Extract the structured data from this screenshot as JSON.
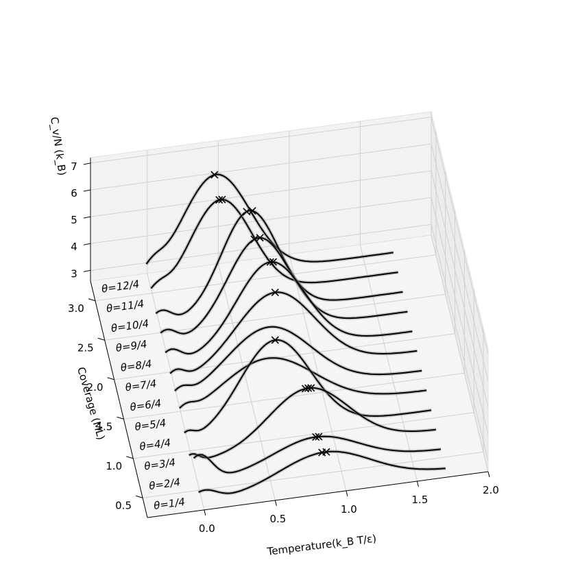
{
  "chart_data": {
    "type": "line",
    "projection": "3d",
    "xlabel": "Temperature(k_B T/ε)",
    "ylabel": "Coverage (ML)",
    "zlabel": "C_v/N (k_B)",
    "x_ticks": [
      "0.0",
      "0.5",
      "1.0",
      "1.5",
      "2.0"
    ],
    "y_ticks": [
      "0.5",
      "1.0",
      "1.5",
      "2.0",
      "2.5",
      "3.0"
    ],
    "z_ticks": [
      "3",
      "4",
      "5",
      "6",
      "7"
    ],
    "xlim": [
      -0.4,
      2.0
    ],
    "ylim": [
      0.25,
      3.25
    ],
    "zlim": [
      2.6,
      7.2
    ],
    "grid": true,
    "pane_color": "#f2f2f2",
    "line_color": "#000000",
    "band_color": "#888888",
    "peak_marker": "x",
    "series": [
      {
        "name": "θ=1/4",
        "coverage": 0.25,
        "base": 2.9,
        "peaks": [
          [
            0.0,
            0.4,
            0.09
          ],
          [
            0.85,
            1.25,
            0.32
          ]
        ],
        "markers": [
          0.83,
          0.86
        ]
      },
      {
        "name": "θ=2/4",
        "coverage": 0.5,
        "base": 2.9,
        "peaks": [
          [
            0.0,
            1.0,
            0.09
          ],
          [
            0.82,
            1.1,
            0.3
          ]
        ],
        "markers": [
          0.82,
          0.84
        ]
      },
      {
        "name": "θ=3/4",
        "coverage": 0.75,
        "base": 2.9,
        "peaks": [
          [
            -0.02,
            0.3,
            0.05
          ],
          [
            0.8,
            2.2,
            0.28
          ]
        ],
        "markers": [
          0.78,
          0.8,
          0.82
        ]
      },
      {
        "name": "θ=4/4",
        "coverage": 1.0,
        "base": 2.9,
        "peaks": [
          [
            -0.02,
            0.3,
            0.05
          ],
          [
            0.6,
            3.4,
            0.25
          ]
        ],
        "markers": [
          0.6
        ]
      },
      {
        "name": "θ=5/4",
        "coverage": 1.25,
        "base": 2.9,
        "peaks": [
          [
            0.0,
            0.3,
            0.06
          ],
          [
            0.58,
            2.0,
            0.33
          ]
        ],
        "markers": []
      },
      {
        "name": "θ=6/4",
        "coverage": 1.5,
        "base": 2.9,
        "peaks": [
          [
            0.0,
            0.35,
            0.06
          ],
          [
            0.62,
            2.4,
            0.3
          ]
        ],
        "markers": []
      },
      {
        "name": "θ=7/4",
        "coverage": 1.75,
        "base": 2.9,
        "peaks": [
          [
            0.0,
            0.4,
            0.06
          ],
          [
            0.7,
            2.9,
            0.28
          ]
        ],
        "markers": [
          0.7
        ]
      },
      {
        "name": "θ=8/4",
        "coverage": 2.0,
        "base": 2.9,
        "peaks": [
          [
            0.0,
            0.5,
            0.07
          ],
          [
            0.7,
            3.3,
            0.24
          ]
        ],
        "markers": [
          0.7,
          0.72
        ]
      },
      {
        "name": "θ=9/4",
        "coverage": 2.25,
        "base": 2.9,
        "peaks": [
          [
            0.0,
            0.5,
            0.07
          ],
          [
            0.65,
            3.5,
            0.22
          ]
        ],
        "markers": [
          0.62,
          0.66
        ]
      },
      {
        "name": "θ=10/4",
        "coverage": 2.5,
        "base": 2.9,
        "peaks": [
          [
            0.0,
            0.5,
            0.07
          ],
          [
            0.62,
            3.8,
            0.2
          ]
        ],
        "markers": [
          0.6,
          0.64
        ]
      },
      {
        "name": "θ=11/4",
        "coverage": 2.75,
        "base": 2.9,
        "peaks": [
          [
            0.0,
            0.4,
            0.07
          ],
          [
            0.45,
            3.6,
            0.22
          ]
        ],
        "markers": [
          0.44,
          0.46
        ]
      },
      {
        "name": "θ=12/4",
        "coverage": 3.0,
        "base": 2.9,
        "peaks": [
          [
            0.0,
            0.4,
            0.07
          ],
          [
            0.45,
            3.8,
            0.24
          ]
        ],
        "markers": [
          0.44
        ]
      }
    ]
  }
}
